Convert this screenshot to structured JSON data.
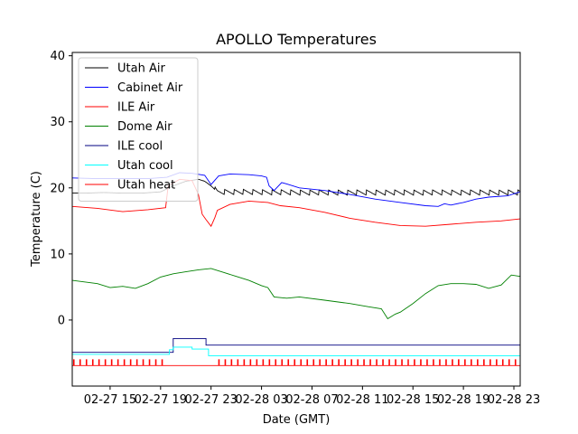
{
  "chart_data": {
    "type": "line",
    "title": "APOLLO Temperatures",
    "xlabel": "Date (GMT)",
    "ylabel": "Temperature (C)",
    "xlim_hours": [
      12.0,
      47.5
    ],
    "ylim": [
      -10,
      40.5
    ],
    "yticks": [
      0,
      10,
      20,
      30,
      40
    ],
    "xticks": [
      {
        "h": 15,
        "label": "02-27 15"
      },
      {
        "h": 19,
        "label": "02-27 19"
      },
      {
        "h": 23,
        "label": "02-27 23"
      },
      {
        "h": 27,
        "label": "02-28 03"
      },
      {
        "h": 31,
        "label": "02-28 07"
      },
      {
        "h": 35,
        "label": "02-28 11"
      },
      {
        "h": 39,
        "label": "02-28 15"
      },
      {
        "h": 43,
        "label": "02-28 19"
      },
      {
        "h": 47,
        "label": "02-28 23"
      }
    ],
    "legend_position": "top-left",
    "series": [
      {
        "name": "Utah Air",
        "color": "#000000",
        "oscillation": {
          "start": 23.3,
          "period": 0.75,
          "amplitude": 0.4
        },
        "x": [
          12.0,
          13.0,
          14.5,
          16.0,
          17.5,
          19.0,
          20.0,
          21.0,
          22.0,
          22.5,
          23.0,
          23.5,
          25.0,
          30.0,
          35.0,
          40.0,
          45.0,
          47.5
        ],
        "y": [
          19.2,
          19.2,
          19.3,
          19.2,
          19.2,
          19.4,
          20.3,
          21.0,
          21.3,
          21.0,
          20.3,
          19.4,
          19.4,
          19.3,
          19.3,
          19.3,
          19.3,
          19.3
        ]
      },
      {
        "name": "Cabinet Air",
        "color": "#0000ff",
        "x": [
          12.0,
          14.0,
          16.0,
          18.0,
          19.5,
          20.5,
          21.5,
          22.5,
          23.0,
          23.6,
          24.5,
          26.0,
          27.0,
          27.4,
          27.6,
          28.0,
          28.6,
          29.0,
          30.0,
          32.0,
          34.0,
          36.0,
          38.0,
          40.0,
          41.0,
          41.5,
          42.0,
          43.0,
          44.0,
          45.0,
          46.5,
          47.5
        ],
        "y": [
          21.5,
          21.4,
          21.4,
          21.4,
          21.6,
          22.3,
          22.2,
          21.9,
          20.5,
          21.8,
          22.1,
          22.0,
          21.8,
          21.6,
          20.3,
          19.6,
          20.8,
          20.6,
          20.0,
          19.6,
          19.0,
          18.3,
          17.8,
          17.3,
          17.2,
          17.6,
          17.4,
          17.8,
          18.3,
          18.6,
          18.8,
          19.4
        ]
      },
      {
        "name": "ILE Air",
        "color": "#ff0000",
        "x": [
          12.0,
          14.0,
          16.0,
          18.0,
          19.4,
          19.6,
          20.5,
          21.5,
          22.0,
          22.3,
          22.6,
          23.0,
          23.3,
          23.5,
          24.5,
          26.0,
          27.5,
          28.5,
          30.0,
          32.0,
          34.0,
          36.0,
          38.0,
          40.0,
          42.0,
          44.0,
          46.0,
          47.5
        ],
        "y": [
          17.2,
          16.9,
          16.4,
          16.7,
          17.0,
          20.3,
          21.3,
          21.1,
          19.0,
          16.0,
          15.2,
          14.2,
          15.5,
          16.6,
          17.5,
          18.0,
          17.8,
          17.3,
          17.0,
          16.3,
          15.4,
          14.8,
          14.3,
          14.2,
          14.5,
          14.8,
          15.0,
          15.3
        ]
      },
      {
        "name": "Dome Air",
        "color": "#008000",
        "x": [
          12.0,
          14.0,
          15.0,
          16.0,
          17.0,
          18.0,
          19.0,
          20.0,
          21.0,
          22.0,
          23.0,
          24.0,
          25.0,
          26.0,
          27.0,
          27.5,
          28.0,
          29.0,
          30.0,
          32.0,
          34.0,
          35.5,
          36.5,
          37.0,
          37.6,
          38.0,
          39.0,
          40.0,
          41.0,
          42.0,
          43.0,
          44.0,
          45.0,
          46.0,
          46.8,
          47.5
        ],
        "y": [
          6.0,
          5.5,
          4.9,
          5.1,
          4.8,
          5.5,
          6.5,
          7.0,
          7.3,
          7.6,
          7.8,
          7.2,
          6.6,
          6.0,
          5.2,
          4.9,
          3.5,
          3.3,
          3.5,
          3.0,
          2.5,
          2.0,
          1.7,
          0.2,
          0.9,
          1.2,
          2.5,
          4.0,
          5.2,
          5.5,
          5.5,
          5.4,
          4.8,
          5.3,
          6.8,
          6.6
        ]
      },
      {
        "name": "ILE cool",
        "color": "#000080",
        "x": [
          12.0,
          20.0,
          20.0,
          22.6,
          22.6,
          47.5
        ],
        "y": [
          -4.9,
          -4.9,
          -2.8,
          -2.8,
          -3.8,
          -3.8
        ]
      },
      {
        "name": "Utah cool",
        "color": "#00ffff",
        "x": [
          12.0,
          19.7,
          19.7,
          20.0,
          20.0,
          21.5,
          21.5,
          22.8,
          22.8,
          47.5
        ],
        "y": [
          -5.2,
          -5.2,
          -4.5,
          -4.5,
          -4.1,
          -4.1,
          -4.4,
          -4.4,
          -5.4,
          -5.4
        ]
      },
      {
        "name": "Utah heat",
        "color": "#ff0000",
        "pulse": {
          "base": -6.9,
          "high": -6.0,
          "period": 0.5,
          "gap_start": 19.2,
          "gap_end": 23.2
        },
        "x": [
          12.0,
          47.5
        ],
        "y": [
          -6.9,
          -6.9
        ]
      }
    ]
  }
}
